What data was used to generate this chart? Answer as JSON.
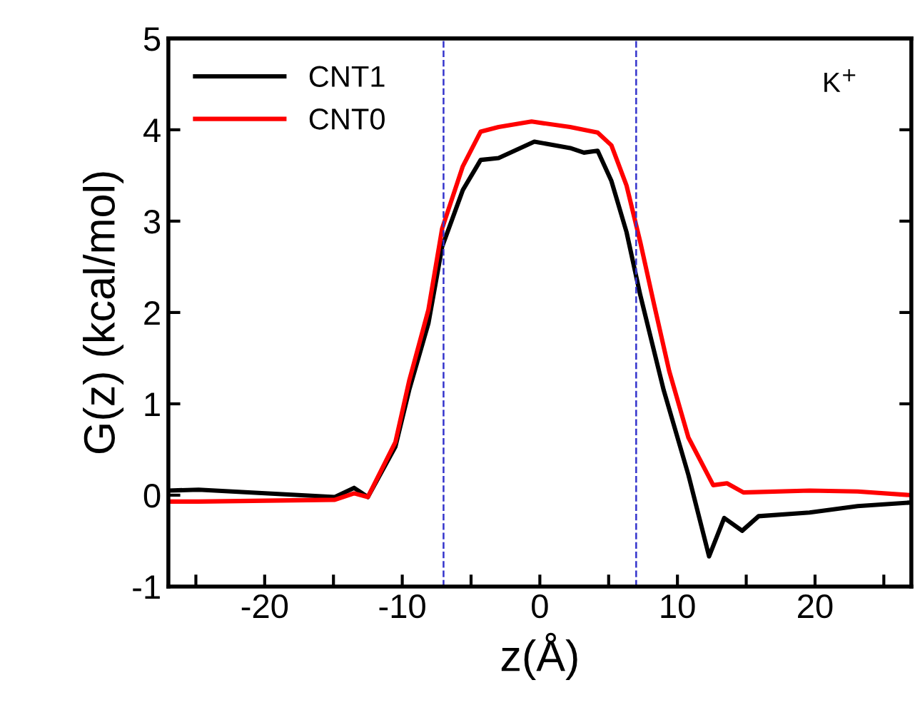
{
  "chart_data": {
    "type": "line",
    "xlabel": "z(Å)",
    "ylabel": "G(z) (kcal/mol)",
    "xlim": [
      -27,
      27
    ],
    "ylim": [
      -1,
      5
    ],
    "xticks": [
      {
        "value": -25,
        "label": null
      },
      -20,
      {
        "value": -15,
        "label": null
      },
      -10,
      {
        "value": -5,
        "label": null
      },
      0,
      {
        "value": 5,
        "label": null
      },
      10,
      {
        "value": 15,
        "label": null
      },
      20,
      {
        "value": 25,
        "label": null
      }
    ],
    "yticks": [
      -1,
      0,
      1,
      2,
      3,
      4,
      5
    ],
    "grid": false,
    "legend": "top left",
    "line_style": "solid",
    "marker": "none",
    "annotations": [
      "K$^{+}$"
    ],
    "ref_lines": [
      {
        "axis": "x",
        "value": -7,
        "color": "#3333cc",
        "line_style": "dashed"
      },
      {
        "axis": "x",
        "value": 7,
        "color": "#3333cc",
        "line_style": "dashed"
      }
    ],
    "series": [
      {
        "name": "CNT1",
        "color": "#000000",
        "x": [
          -27,
          -24.8,
          -14.9,
          -13.5,
          -12.5,
          -10.5,
          -9.5,
          -8.1,
          -7.1,
          -5.6,
          -4.3,
          -3.0,
          -0.4,
          2.2,
          3.2,
          4.2,
          5.2,
          6.3,
          7.3,
          9.0,
          10.8,
          12.3,
          13.4,
          14.7,
          15.9,
          19.6,
          23.1,
          27
        ],
        "values": [
          0.05,
          0.06,
          -0.02,
          0.08,
          -0.02,
          0.53,
          1.15,
          1.88,
          2.72,
          3.34,
          3.67,
          3.69,
          3.87,
          3.8,
          3.75,
          3.77,
          3.44,
          2.88,
          2.19,
          1.15,
          0.22,
          -0.67,
          -0.25,
          -0.39,
          -0.23,
          -0.19,
          -0.12,
          -0.08
        ]
      },
      {
        "name": "CNT0",
        "color": "#ff0000",
        "x": [
          -27,
          -24.8,
          -14.9,
          -13.5,
          -12.5,
          -10.5,
          -9.5,
          -8.1,
          -7.1,
          -5.6,
          -4.3,
          -3.0,
          -0.6,
          2.2,
          4.2,
          5.2,
          6.3,
          7.3,
          8.3,
          9.4,
          10.8,
          12.6,
          13.6,
          14.8,
          19.6,
          23.1,
          27
        ],
        "values": [
          -0.07,
          -0.07,
          -0.05,
          0.02,
          -0.02,
          0.58,
          1.25,
          2.03,
          2.92,
          3.6,
          3.98,
          4.03,
          4.09,
          4.03,
          3.97,
          3.83,
          3.39,
          2.77,
          2.09,
          1.36,
          0.63,
          0.11,
          0.13,
          0.03,
          0.05,
          0.04,
          0.0
        ]
      }
    ]
  }
}
